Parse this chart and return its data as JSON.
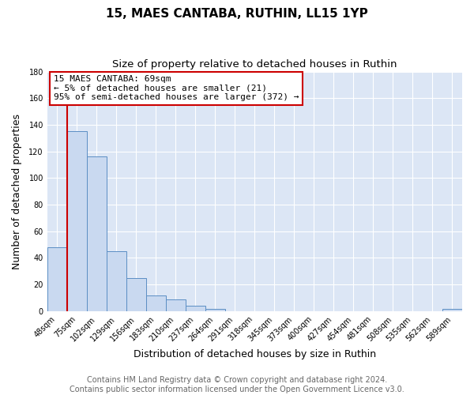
{
  "title": "15, MAES CANTABA, RUTHIN, LL15 1YP",
  "subtitle": "Size of property relative to detached houses in Ruthin",
  "xlabel": "Distribution of detached houses by size in Ruthin",
  "ylabel": "Number of detached properties",
  "bar_labels": [
    "48sqm",
    "75sqm",
    "102sqm",
    "129sqm",
    "156sqm",
    "183sqm",
    "210sqm",
    "237sqm",
    "264sqm",
    "291sqm",
    "318sqm",
    "345sqm",
    "373sqm",
    "400sqm",
    "427sqm",
    "454sqm",
    "481sqm",
    "508sqm",
    "535sqm",
    "562sqm",
    "589sqm"
  ],
  "bar_values": [
    48,
    135,
    116,
    45,
    25,
    12,
    9,
    4,
    2,
    0,
    0,
    0,
    0,
    0,
    0,
    0,
    0,
    0,
    0,
    0,
    2
  ],
  "bar_color": "#c9d9f0",
  "bar_edge_color": "#5b8ec4",
  "red_line_x": 0.5,
  "annotation_title": "15 MAES CANTABA: 69sqm",
  "annotation_line1": "← 5% of detached houses are smaller (21)",
  "annotation_line2": "95% of semi-detached houses are larger (372) →",
  "annotation_box_color": "#ffffff",
  "annotation_box_edge": "#cc0000",
  "red_line_color": "#cc0000",
  "fig_bg_color": "#ffffff",
  "plot_bg_color": "#dce6f5",
  "footer_color": "#666666",
  "footer_line1": "Contains HM Land Registry data © Crown copyright and database right 2024.",
  "footer_line2": "Contains public sector information licensed under the Open Government Licence v3.0.",
  "ylim": [
    0,
    180
  ],
  "yticks": [
    0,
    20,
    40,
    60,
    80,
    100,
    120,
    140,
    160,
    180
  ],
  "title_fontsize": 11,
  "subtitle_fontsize": 9.5,
  "axis_label_fontsize": 9,
  "tick_fontsize": 7,
  "annotation_fontsize": 8,
  "footer_fontsize": 7
}
